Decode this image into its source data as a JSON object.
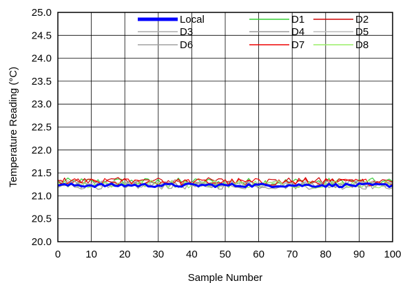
{
  "chart_data": {
    "type": "line",
    "xlabel": "Sample Number",
    "ylabel": "Temperature Reading (°C)",
    "xlim": [
      0,
      100
    ],
    "ylim": [
      20.0,
      25.0
    ],
    "xticks": [
      0,
      10,
      20,
      30,
      40,
      50,
      60,
      70,
      80,
      90,
      100
    ],
    "yticks": [
      20.0,
      20.5,
      21.0,
      21.5,
      22.0,
      22.5,
      23.0,
      23.5,
      24.0,
      24.5,
      25.0
    ],
    "xtick_labels": [
      "0",
      "10",
      "20",
      "30",
      "40",
      "50",
      "60",
      "70",
      "80",
      "90",
      "100"
    ],
    "ytick_labels": [
      "20.0",
      "20.5",
      "21.0",
      "21.5",
      "22.0",
      "22.5",
      "23.0",
      "23.5",
      "24.0",
      "24.5",
      "25.0"
    ],
    "grid": true,
    "legend_position": "top-right",
    "series": [
      {
        "name": "Local",
        "color": "#0000ff",
        "base": 21.23,
        "amp": 0.04,
        "width": 3
      },
      {
        "name": "D1",
        "color": "#33cc33",
        "base": 21.3,
        "amp": 0.09,
        "width": 1.2
      },
      {
        "name": "D2",
        "color": "#cc0000",
        "base": 21.32,
        "amp": 0.08,
        "width": 1.2
      },
      {
        "name": "D3",
        "color": "#aaaaaa",
        "base": 21.25,
        "amp": 0.08,
        "width": 1.2
      },
      {
        "name": "D4",
        "color": "#999999",
        "base": 21.22,
        "amp": 0.08,
        "width": 1.2
      },
      {
        "name": "D5",
        "color": "#bbbbbb",
        "base": 21.27,
        "amp": 0.07,
        "width": 1.2
      },
      {
        "name": "D6",
        "color": "#a0a0a0",
        "base": 21.24,
        "amp": 0.08,
        "width": 1.2
      },
      {
        "name": "D7",
        "color": "#ee0000",
        "base": 21.3,
        "amp": 0.08,
        "width": 1.2
      },
      {
        "name": "D8",
        "color": "#99ee66",
        "base": 21.26,
        "amp": 0.09,
        "width": 1.2
      }
    ]
  }
}
